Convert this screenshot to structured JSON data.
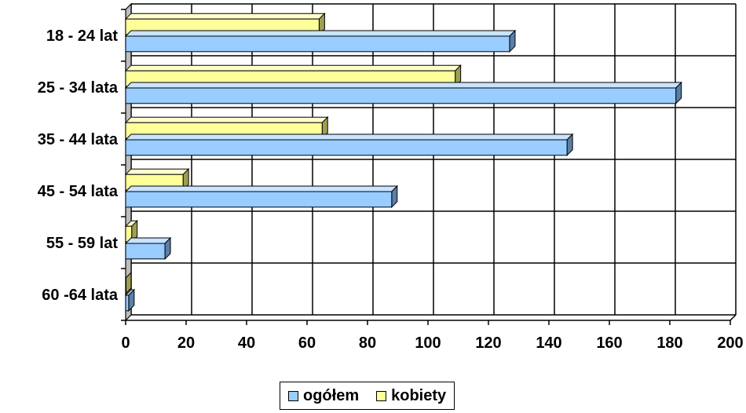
{
  "chart_data": {
    "type": "bar",
    "orientation": "horizontal",
    "categories": [
      "18 - 24 lat",
      "25 - 34 lata",
      "35 - 44 lata",
      "45 - 54 lata",
      "55 - 59 lat",
      "60 -64 lata"
    ],
    "series": [
      {
        "name": "ogółem",
        "color": "#99CCFF",
        "values": [
          127,
          182,
          146,
          88,
          13,
          1
        ]
      },
      {
        "name": "kobiety",
        "color": "#FFFF99",
        "values": [
          64,
          109,
          65,
          19,
          2,
          0
        ]
      }
    ],
    "xlim": [
      0,
      200
    ],
    "xticks": [
      "0",
      "20",
      "40",
      "60",
      "80",
      "100",
      "120",
      "140",
      "160",
      "180",
      "200"
    ],
    "grid": true,
    "legend_position": "bottom"
  }
}
